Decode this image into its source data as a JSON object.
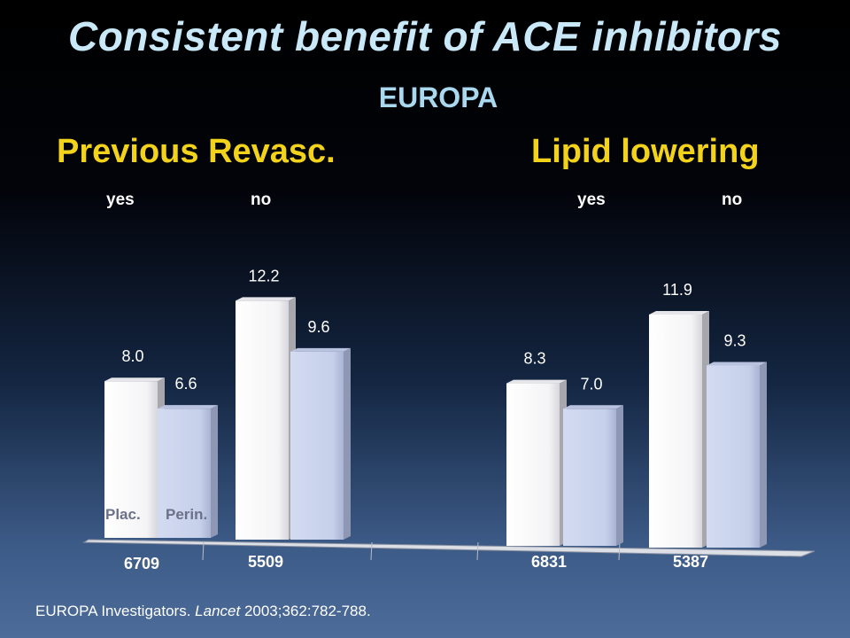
{
  "title": "Consistent benefit of ACE inhibitors",
  "subtitle": "EUROPA",
  "groups": [
    {
      "title": "Previous Revasc.",
      "yes": "yes",
      "no": "no"
    },
    {
      "title": "Lipid lowering",
      "yes": "yes",
      "no": "no"
    }
  ],
  "citation": {
    "authors": "EUROPA Investigators.",
    "journal": "Lancet",
    "ref": "2003;362:782-788."
  },
  "colors": {
    "title": "#c9e8f8",
    "subtitle": "#a9d8ef",
    "group_title": "#f2d21a",
    "placebo_bar": "#ffffff",
    "perindopril_bar": "#c6d0ea"
  },
  "chart_data": {
    "type": "bar",
    "categories": [
      "6709",
      "5509",
      "6831",
      "5387"
    ],
    "series": [
      {
        "name": "Plac.",
        "values": [
          8.0,
          12.2,
          8.3,
          11.9
        ]
      },
      {
        "name": "Perin.",
        "values": [
          6.6,
          9.6,
          7.0,
          9.3
        ]
      }
    ],
    "data_labels": [
      [
        "8.0",
        "12.2",
        "8.3",
        "11.9"
      ],
      [
        "6.6",
        "9.6",
        "7.0",
        "9.3"
      ]
    ],
    "legend": "inside-bottom-left"
  }
}
